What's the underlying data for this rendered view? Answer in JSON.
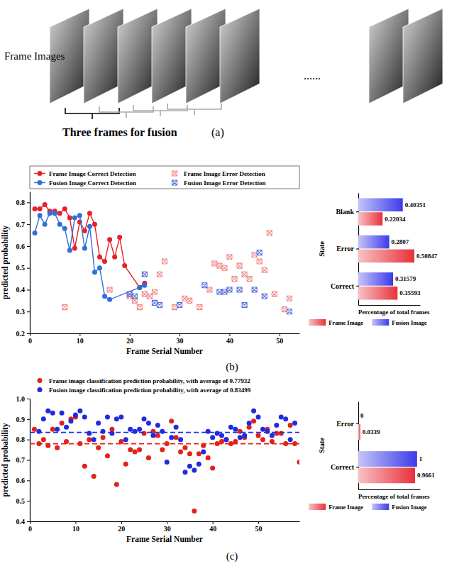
{
  "panel_a": {
    "label": "Frame Images",
    "ellipsis": "......",
    "caption": "Three frames for fusion",
    "panel": "(a)"
  },
  "chart_data": [
    {
      "type": "line",
      "panel": "(b)",
      "x_label": "Frame Serial Number",
      "y_label": "predicted probability",
      "xlim": [
        0,
        54
      ],
      "ylim": [
        0.2,
        0.85
      ],
      "xticks": [
        0,
        10,
        20,
        30,
        40,
        50
      ],
      "yticks": [
        0.2,
        0.3,
        0.4,
        0.5,
        0.6,
        0.7,
        0.8
      ],
      "legend": "top",
      "series": [
        {
          "name": "Frame Image Correct Detection",
          "type": "line",
          "color": "#e8202a",
          "marker": "circle",
          "line_style": "solid",
          "x": [
            1,
            2,
            3,
            4,
            5,
            6,
            7,
            8,
            9,
            10,
            11,
            12,
            13,
            14,
            15,
            16,
            17,
            18,
            19,
            22,
            23
          ],
          "values": [
            0.77,
            0.77,
            0.79,
            0.76,
            0.76,
            0.75,
            0.77,
            0.73,
            0.59,
            0.71,
            0.67,
            0.75,
            0.7,
            0.55,
            0.53,
            0.63,
            0.55,
            0.64,
            0.51,
            0.41,
            0.43
          ]
        },
        {
          "name": "Fusion Image Correct Detection",
          "type": "line",
          "color": "#2f6fd8",
          "marker": "circle",
          "line_style": "solid",
          "x": [
            1,
            2,
            3,
            4,
            5,
            6,
            7,
            8,
            9,
            10,
            11,
            12,
            13,
            14,
            15,
            16,
            22,
            23
          ],
          "values": [
            0.66,
            0.74,
            0.7,
            0.75,
            0.75,
            0.7,
            0.68,
            0.58,
            0.73,
            0.74,
            0.59,
            0.69,
            0.48,
            0.5,
            0.37,
            0.355,
            0.41,
            0.42
          ]
        },
        {
          "name": "Frame Image Error Detection",
          "type": "scatter",
          "color": "#f08c8c",
          "marker": "square-x",
          "x": [
            7,
            16,
            20,
            21,
            22,
            23,
            24,
            25,
            26,
            27,
            29,
            31,
            32,
            34,
            36,
            37,
            38,
            39,
            40,
            41,
            42,
            43,
            44,
            45,
            46,
            47,
            48,
            49,
            51,
            52
          ],
          "values": [
            0.32,
            0.4,
            0.37,
            0.35,
            0.32,
            0.38,
            0.37,
            0.39,
            0.47,
            0.53,
            0.32,
            0.36,
            0.35,
            0.32,
            0.4,
            0.52,
            0.51,
            0.5,
            0.55,
            0.45,
            0.51,
            0.47,
            0.45,
            0.56,
            0.53,
            0.49,
            0.66,
            0.38,
            0.31,
            0.36
          ]
        },
        {
          "name": "Fusion Image Error Detection",
          "type": "scatter",
          "color": "#5a6ede",
          "marker": "square-x",
          "x": [
            20,
            21,
            23,
            25,
            26,
            30,
            35,
            38,
            39,
            40,
            42,
            43,
            45,
            46,
            47,
            52
          ],
          "values": [
            0.38,
            0.37,
            0.47,
            0.34,
            0.33,
            0.33,
            0.42,
            0.39,
            0.39,
            0.4,
            0.4,
            0.33,
            0.4,
            0.57,
            0.37,
            0.3
          ]
        }
      ]
    },
    {
      "type": "bar",
      "orientation": "horizontal",
      "x_label": "Percentage of total frames",
      "y_label": "State",
      "categories": [
        "Blank",
        "Error",
        "Correct"
      ],
      "xlim": [
        0,
        0.56
      ],
      "data_labels": true,
      "tick_labels": "y",
      "legend": "bottom",
      "series": [
        {
          "name": "Frame Image",
          "color": "#e8313a",
          "values": [
            0.22034,
            0.50847,
            0.35593
          ]
        },
        {
          "name": "Fusion Image",
          "color": "#3b3bea",
          "values": [
            0.40351,
            0.2807,
            0.31579
          ]
        }
      ]
    },
    {
      "type": "scatter",
      "panel": "(c)",
      "x_label": "Frame Serial Number",
      "y_label": "predicted probability",
      "xlim": [
        0,
        59
      ],
      "ylim": [
        0.4,
        1.0
      ],
      "xticks": [
        0,
        10,
        20,
        30,
        40,
        50
      ],
      "yticks": [
        0.4,
        0.5,
        0.6,
        0.7,
        0.8,
        0.9,
        {
          "value": 1.0,
          "label": "1.0"
        }
      ],
      "legend": "top",
      "series": [
        {
          "name": "Frame image classification prediction probability, with average of 0.77932",
          "color": "#e32119",
          "marker": "circle",
          "mean": 0.77932,
          "x": [
            1,
            2,
            3,
            4,
            5,
            6,
            7,
            8,
            9,
            10,
            11,
            12,
            13,
            14,
            15,
            16,
            17,
            18,
            19,
            20,
            21,
            22,
            23,
            24,
            25,
            26,
            27,
            28,
            29,
            30,
            31,
            32,
            33,
            34,
            35,
            36,
            37,
            38,
            39,
            40,
            41,
            42,
            43,
            44,
            45,
            46,
            47,
            48,
            49,
            50,
            51,
            52,
            53,
            54,
            55,
            56,
            57,
            58,
            59
          ],
          "values": [
            0.85,
            0.78,
            0.8,
            0.77,
            0.85,
            0.76,
            0.88,
            0.79,
            0.9,
            0.91,
            0.78,
            0.67,
            0.8,
            0.62,
            0.76,
            0.81,
            0.72,
            0.85,
            0.58,
            0.79,
            0.68,
            0.75,
            0.74,
            0.75,
            0.83,
            0.71,
            0.84,
            0.82,
            0.75,
            0.78,
            0.89,
            0.81,
            0.74,
            0.76,
            0.73,
            0.45,
            0.73,
            0.77,
            0.71,
            0.66,
            0.78,
            0.79,
            0.8,
            0.78,
            0.79,
            0.84,
            0.81,
            0.86,
            0.89,
            0.82,
            0.8,
            0.85,
            0.79,
            0.83,
            0.83,
            0.78,
            0.87,
            0.78,
            0.69
          ]
        },
        {
          "name": "Fusion image classification prediction probability, with average of 0.83499",
          "color": "#1f2bde",
          "marker": "circle",
          "mean": 0.83499,
          "x": [
            2,
            3,
            4,
            5,
            6,
            7,
            8,
            9,
            10,
            11,
            12,
            13,
            14,
            15,
            16,
            17,
            18,
            19,
            20,
            21,
            22,
            23,
            24,
            25,
            26,
            27,
            28,
            29,
            30,
            31,
            32,
            33,
            34,
            35,
            36,
            37,
            38,
            39,
            40,
            41,
            42,
            43,
            44,
            45,
            46,
            47,
            48,
            49,
            50,
            51,
            52,
            53,
            54,
            55,
            56,
            57,
            58
          ],
          "values": [
            0.84,
            0.9,
            0.94,
            0.93,
            0.85,
            0.93,
            0.86,
            0.89,
            0.92,
            0.94,
            0.91,
            0.83,
            0.8,
            0.88,
            0.84,
            0.91,
            0.83,
            0.9,
            0.91,
            0.8,
            0.85,
            0.84,
            0.85,
            0.9,
            0.88,
            0.82,
            0.87,
            0.84,
            0.69,
            0.81,
            0.86,
            0.8,
            0.64,
            0.67,
            0.65,
            0.68,
            0.74,
            0.84,
            0.81,
            0.83,
            0.82,
            0.8,
            0.86,
            0.85,
            0.81,
            0.82,
            0.88,
            0.94,
            0.91,
            0.85,
            0.84,
            0.82,
            0.87,
            0.91,
            0.9,
            0.8,
            0.88
          ]
        }
      ]
    },
    {
      "type": "bar",
      "orientation": "horizontal",
      "x_label": "Percentage of total frames",
      "y_label": "State",
      "categories": [
        "Error",
        "Correct"
      ],
      "xlim": [
        0,
        1.05
      ],
      "data_labels": true,
      "tick_labels": "y",
      "legend": "bottom",
      "series": [
        {
          "name": "Frame Image",
          "color": "#e8313a",
          "values": [
            0.0339,
            0.9661
          ]
        },
        {
          "name": "Fusion Image",
          "color": "#3b3bea",
          "values": [
            0,
            1
          ]
        }
      ]
    }
  ]
}
